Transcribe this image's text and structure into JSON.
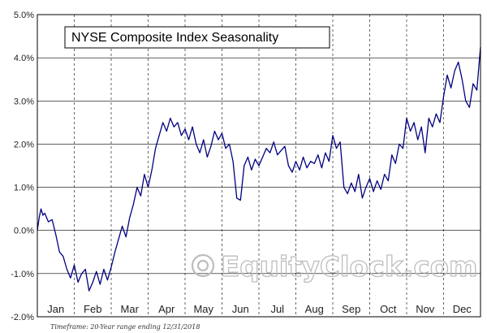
{
  "chart_data": {
    "type": "line",
    "title": "NYSE Composite Index Seasonality",
    "xlabel": "",
    "ylabel": "",
    "x_tick_labels": [
      "Jan",
      "Feb",
      "Mar",
      "Apr",
      "May",
      "Jun",
      "Jul",
      "Aug",
      "Sep",
      "Oct",
      "Nov",
      "Dec"
    ],
    "y_tick_labels": [
      "5.0%",
      "4.0%",
      "3.0%",
      "2.0%",
      "1.0%",
      "0.0%",
      "-1.0%",
      "-2.0%"
    ],
    "y_ticks": [
      5,
      4,
      3,
      2,
      1,
      0,
      -1,
      -2
    ],
    "ylim": [
      -2,
      5
    ],
    "xlim": [
      0,
      12
    ],
    "grid": {
      "horizontal": "solid",
      "vertical": "dashed"
    },
    "line_color": "#000080",
    "series": [
      {
        "x": [
          0,
          0.05,
          0.1,
          0.15,
          0.2,
          0.3,
          0.4,
          0.5,
          0.6,
          0.7,
          0.8,
          0.9,
          1.0,
          1.1,
          1.2,
          1.3,
          1.4,
          1.5,
          1.6,
          1.7,
          1.8,
          1.9,
          2.0,
          2.1,
          2.2,
          2.3,
          2.4,
          2.5,
          2.6,
          2.7,
          2.8,
          2.9,
          3.0,
          3.1,
          3.2,
          3.3,
          3.4,
          3.5,
          3.6,
          3.7,
          3.8,
          3.9,
          4.0,
          4.1,
          4.2,
          4.3,
          4.4,
          4.5,
          4.6,
          4.7,
          4.8,
          4.9,
          5.0,
          5.1,
          5.2,
          5.3,
          5.4,
          5.5,
          5.6,
          5.7,
          5.8,
          5.9,
          6.0,
          6.1,
          6.2,
          6.3,
          6.4,
          6.5,
          6.6,
          6.7,
          6.8,
          6.9,
          7.0,
          7.1,
          7.2,
          7.3,
          7.4,
          7.5,
          7.6,
          7.7,
          7.8,
          7.9,
          8.0,
          8.1,
          8.2,
          8.3,
          8.4,
          8.5,
          8.6,
          8.7,
          8.8,
          8.9,
          9.0,
          9.1,
          9.2,
          9.3,
          9.4,
          9.5,
          9.6,
          9.7,
          9.8,
          9.9,
          10.0,
          10.1,
          10.2,
          10.3,
          10.4,
          10.5,
          10.6,
          10.7,
          10.8,
          10.9,
          11.0,
          11.1,
          11.2,
          11.3,
          11.4,
          11.5,
          11.6,
          11.7,
          11.8,
          11.9,
          12.0
        ],
        "values": [
          0.0,
          0.3,
          0.5,
          0.35,
          0.4,
          0.2,
          0.25,
          -0.1,
          -0.5,
          -0.6,
          -0.9,
          -1.1,
          -0.8,
          -1.2,
          -1.0,
          -0.9,
          -1.4,
          -1.2,
          -0.95,
          -1.25,
          -0.9,
          -1.15,
          -0.85,
          -0.5,
          -0.2,
          0.1,
          -0.15,
          0.3,
          0.6,
          1.0,
          0.8,
          1.3,
          1.0,
          1.4,
          1.9,
          2.2,
          2.5,
          2.3,
          2.6,
          2.4,
          2.5,
          2.2,
          2.35,
          2.1,
          2.4,
          2.0,
          1.8,
          2.1,
          1.7,
          1.95,
          2.3,
          2.1,
          2.25,
          1.9,
          2.0,
          1.6,
          0.75,
          0.7,
          1.5,
          1.7,
          1.4,
          1.65,
          1.5,
          1.7,
          1.9,
          1.8,
          2.05,
          1.75,
          1.85,
          1.95,
          1.5,
          1.35,
          1.6,
          1.4,
          1.7,
          1.45,
          1.6,
          1.55,
          1.75,
          1.45,
          1.8,
          1.6,
          2.2,
          1.9,
          2.05,
          1.0,
          0.85,
          1.1,
          0.9,
          1.3,
          0.75,
          1.0,
          1.2,
          0.9,
          1.15,
          0.95,
          1.3,
          1.15,
          1.75,
          1.55,
          2.0,
          1.9,
          2.6,
          2.3,
          2.5,
          2.1,
          2.4,
          1.8,
          2.6,
          2.4,
          2.7,
          2.5,
          3.1,
          3.6,
          3.3,
          3.7,
          3.9,
          3.5,
          3.0,
          2.85,
          3.4,
          3.25,
          4.25
        ]
      }
    ]
  },
  "watermark": "EquityClock.com",
  "footnote": "Timeframe: 20-Year range ending 12/31/2018"
}
